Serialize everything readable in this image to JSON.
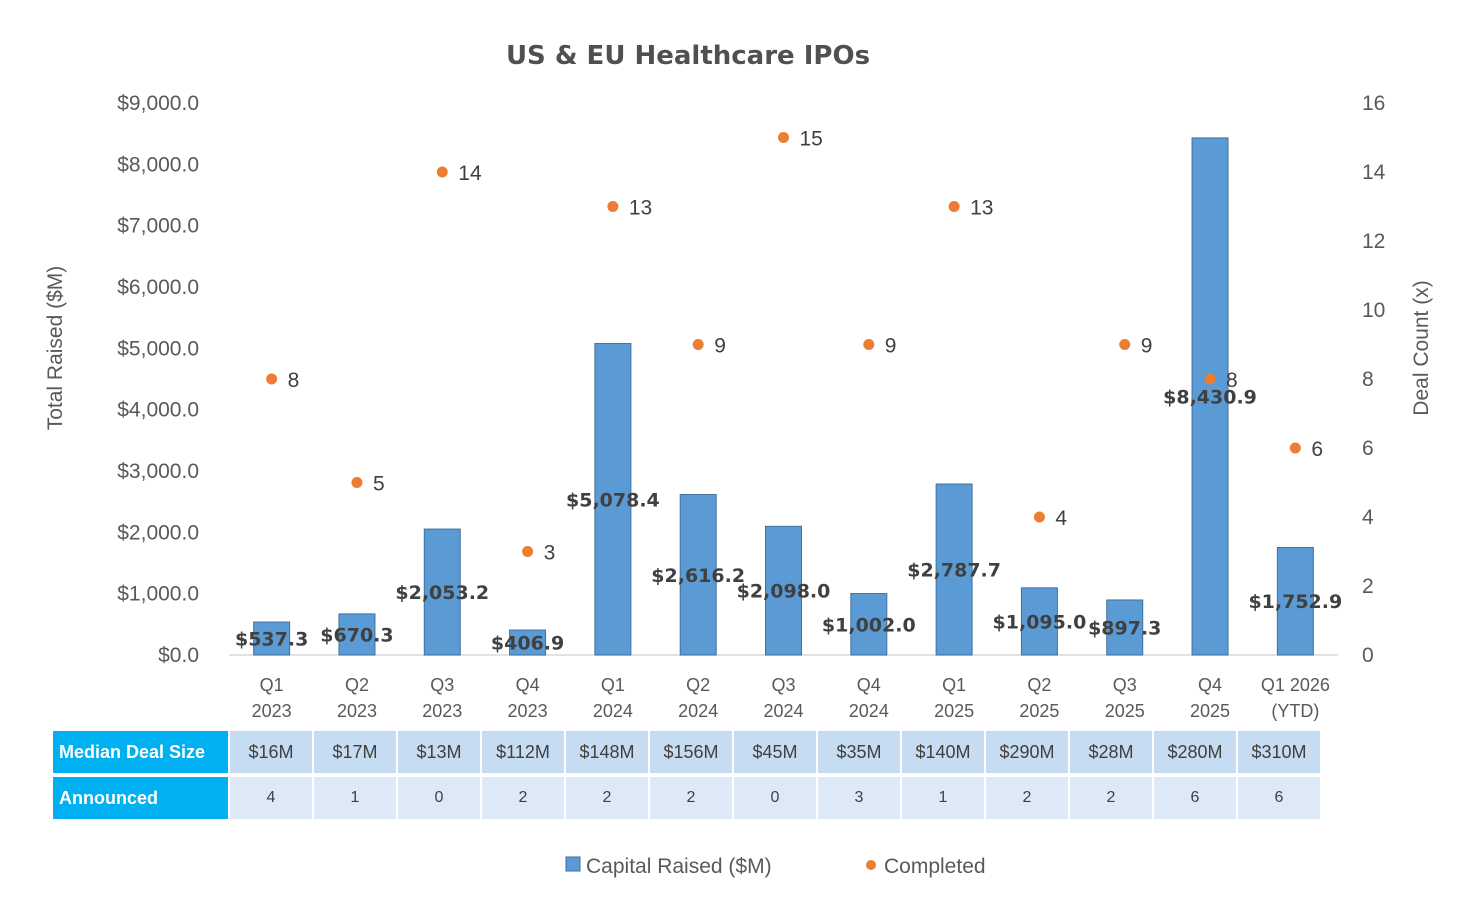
{
  "chart_data": {
    "type": "bar",
    "title": "US & EU Healthcare IPOs",
    "ylabel": "Total Raised ($M)",
    "y2label": "Deal Count (x)",
    "ylim": [
      0,
      9000
    ],
    "y2lim": [
      0,
      16
    ],
    "yticks": [
      "$0.0",
      "$1,000.0",
      "$2,000.0",
      "$3,000.0",
      "$4,000.0",
      "$5,000.0",
      "$6,000.0",
      "$7,000.0",
      "$8,000.0",
      "$9,000.0"
    ],
    "y2ticks": [
      "0",
      "2",
      "4",
      "6",
      "8",
      "10",
      "12",
      "14",
      "16"
    ],
    "categories": [
      [
        "Q1",
        "2023"
      ],
      [
        "Q2",
        "2023"
      ],
      [
        "Q3",
        "2023"
      ],
      [
        "Q4",
        "2023"
      ],
      [
        "Q1",
        "2024"
      ],
      [
        "Q2",
        "2024"
      ],
      [
        "Q3",
        "2024"
      ],
      [
        "Q4",
        "2024"
      ],
      [
        "Q1",
        "2025"
      ],
      [
        "Q2",
        "2025"
      ],
      [
        "Q3",
        "2025"
      ],
      [
        "Q4",
        "2025"
      ],
      [
        "Q1 2026",
        "(YTD)"
      ]
    ],
    "series": [
      {
        "name": "Capital Raised ($M)",
        "type": "bar",
        "axis": "left",
        "color": "#5b9bd5",
        "values": [
          537.3,
          670.3,
          2053.2,
          406.9,
          5078.4,
          2616.2,
          2098.0,
          1002.0,
          2787.7,
          1095.0,
          897.3,
          8430.9,
          1752.9
        ],
        "labels": [
          "$537.3",
          "$670.3",
          "$2,053.2",
          "$406.9",
          "$5,078.4",
          "$2,616.2",
          "$2,098.0",
          "$1,002.0",
          "$2,787.7",
          "$1,095.0",
          "$897.3",
          "$8,430.9",
          "$1,752.9"
        ]
      },
      {
        "name": "Completed",
        "type": "scatter",
        "axis": "right",
        "color": "#ed7d31",
        "values": [
          8,
          5,
          14,
          3,
          13,
          9,
          15,
          9,
          13,
          4,
          9,
          8,
          6
        ]
      }
    ],
    "legend": "bottom",
    "grid": false
  },
  "table": {
    "rows": [
      {
        "header": "Median Deal Size",
        "values": [
          "$16M",
          "$17M",
          "$13M",
          "$112M",
          "$148M",
          "$156M",
          "$45M",
          "$35M",
          "$140M",
          "$290M",
          "$28M",
          "$280M",
          "$310M"
        ]
      },
      {
        "header": "Announced",
        "values": [
          "4",
          "1",
          "0",
          "2",
          "2",
          "2",
          "0",
          "3",
          "1",
          "2",
          "2",
          "6",
          "6"
        ]
      }
    ]
  }
}
